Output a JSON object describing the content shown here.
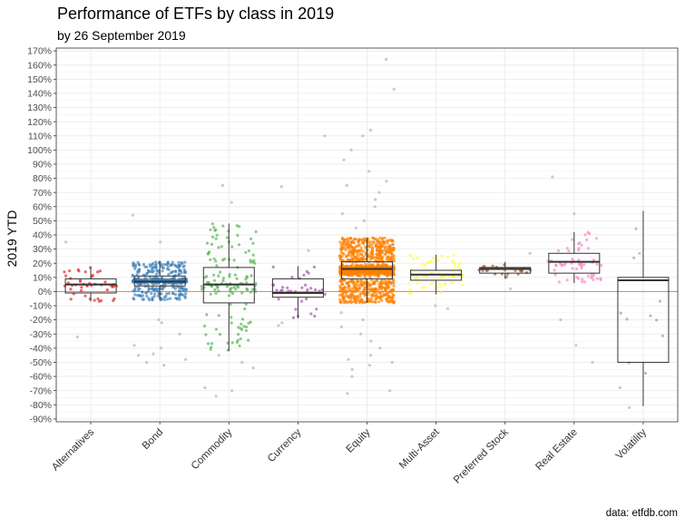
{
  "chart_data": {
    "type": "boxplot",
    "title": "Performance of ETFs by class in 2019",
    "subtitle": "by 26 September 2019",
    "caption": "data: etfdb.com",
    "xlabel": "",
    "ylabel": "2019 YTD",
    "ylim": [
      -92,
      172
    ],
    "yticks": [
      -90,
      -80,
      -70,
      -60,
      -50,
      -40,
      -30,
      -20,
      -10,
      0,
      10,
      20,
      30,
      40,
      50,
      60,
      70,
      80,
      90,
      100,
      110,
      120,
      130,
      140,
      150,
      160,
      170
    ],
    "ytick_suffix": "%",
    "reference_line": {
      "y": 0,
      "color": "#f08080"
    },
    "outlier_color": "#bdbdbd",
    "categories": [
      {
        "name": "Alternatives",
        "color": "#e41a1c",
        "q1": -1,
        "median": 5,
        "q3": 9,
        "whisker_low": -7,
        "whisker_high": 17,
        "n": 45,
        "outliers": [
          35,
          -32
        ]
      },
      {
        "name": "Bond",
        "color": "#377eb8",
        "q1": 4,
        "median": 7,
        "q3": 11,
        "whisker_low": -6,
        "whisker_high": 21,
        "n": 420,
        "outliers": [
          54,
          35,
          -22,
          -20,
          -30,
          -38,
          -40,
          -44,
          -45,
          -48,
          -50,
          -52
        ]
      },
      {
        "name": "Commodity",
        "color": "#4daf4a",
        "q1": -8,
        "median": 5,
        "q3": 17,
        "whisker_low": -42,
        "whisker_high": 48,
        "n": 140,
        "outliers": [
          75,
          63,
          -45,
          -50,
          -54,
          -68,
          -70,
          -74
        ]
      },
      {
        "name": "Currency",
        "color": "#984ea3",
        "q1": -4,
        "median": -1,
        "q3": 9,
        "whisker_low": -19,
        "whisker_high": 18,
        "n": 35,
        "outliers": [
          110,
          74,
          29,
          -22,
          -24
        ]
      },
      {
        "name": "Equity",
        "color": "#ff7f00",
        "q1": 9,
        "median": 16,
        "q3": 21,
        "whisker_low": -8,
        "whisker_high": 38,
        "n": 1400,
        "outliers": [
          164,
          143,
          114,
          110,
          100,
          93,
          85,
          78,
          75,
          70,
          65,
          60,
          55,
          50,
          45,
          -15,
          -20,
          -25,
          -30,
          -35,
          -40,
          -45,
          -48,
          -50,
          -52,
          -55,
          -60,
          -70,
          -72
        ]
      },
      {
        "name": "Multi-Asset",
        "color": "#ffff33",
        "q1": 8,
        "median": 12,
        "q3": 15,
        "whisker_low": -2,
        "whisker_high": 26,
        "n": 70,
        "outliers": [
          -12,
          -10
        ]
      },
      {
        "name": "Preferred Stock",
        "color": "#a65628",
        "q1": 13,
        "median": 16,
        "q3": 17,
        "whisker_low": 9,
        "whisker_high": 21,
        "n": 25,
        "outliers": [
          2,
          27
        ]
      },
      {
        "name": "Real Estate",
        "color": "#f781bf",
        "q1": 13,
        "median": 21,
        "q3": 27,
        "whisker_low": 6,
        "whisker_high": 42,
        "n": 60,
        "outliers": [
          81,
          55,
          -20,
          -38,
          -50
        ]
      },
      {
        "name": "Volatility",
        "color": "#999999",
        "q1": -50,
        "median": 8,
        "q3": 10,
        "whisker_low": -81,
        "whisker_high": 57,
        "n": 10,
        "outliers": [
          -82,
          -68,
          27
        ]
      }
    ]
  }
}
